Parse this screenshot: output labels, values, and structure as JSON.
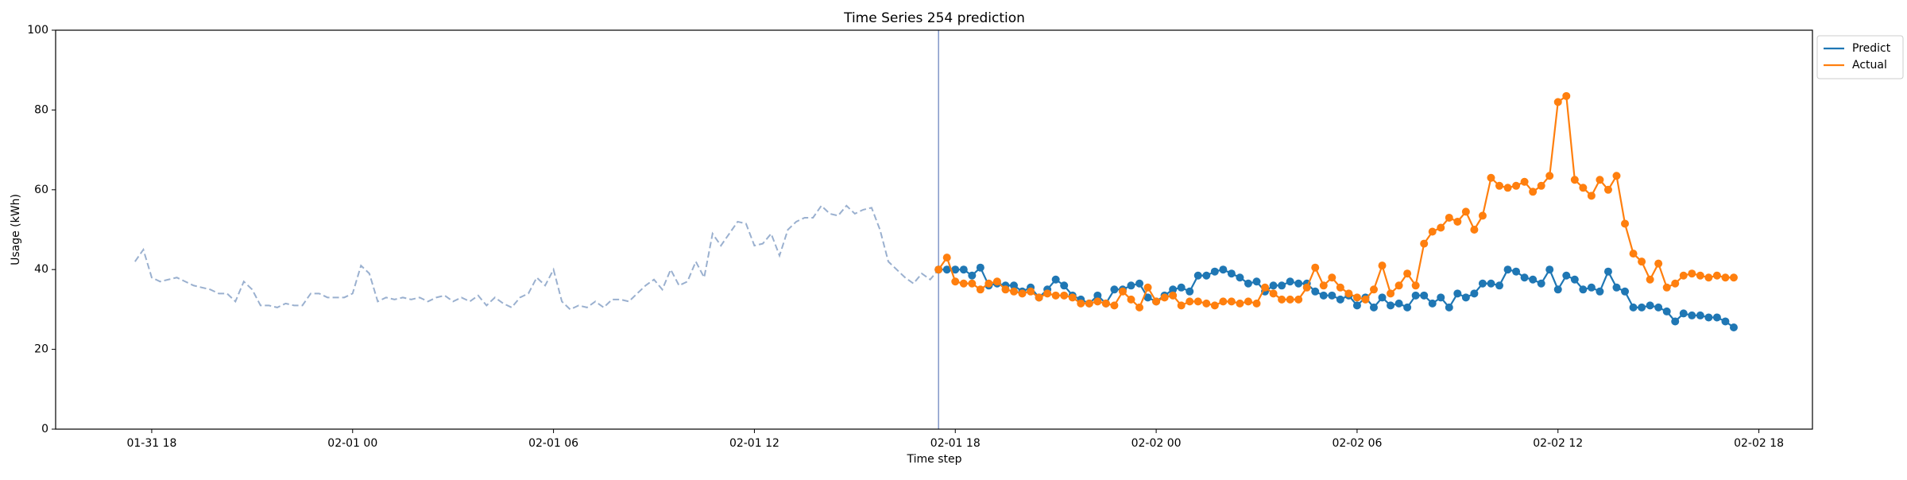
{
  "chart_data": {
    "type": "line",
    "title": "Time Series 254 prediction",
    "x_label": "Time step",
    "y_label": "Usage (kWh)",
    "xlim": [
      15.13,
      67.6
    ],
    "ylim": [
      0,
      100
    ],
    "xticks": [
      {
        "value": 18,
        "label": "01-31 18"
      },
      {
        "value": 24,
        "label": "02-01 00"
      },
      {
        "value": 30,
        "label": "02-01 06"
      },
      {
        "value": 36,
        "label": "02-01 12"
      },
      {
        "value": 42,
        "label": "02-01 18"
      },
      {
        "value": 48,
        "label": "02-02 00"
      },
      {
        "value": 54,
        "label": "02-02 06"
      },
      {
        "value": 60,
        "label": "02-02 12"
      },
      {
        "value": 66,
        "label": "02-02 18"
      }
    ],
    "yticks": [
      0,
      20,
      40,
      60,
      80,
      100
    ],
    "legend": "upper right",
    "grid": false,
    "history": {
      "color": "#9ab0cf",
      "style": "dashed",
      "x": [
        17.5,
        17.75,
        18,
        18.25,
        18.5,
        18.75,
        19,
        19.25,
        19.5,
        19.75,
        20,
        20.25,
        20.5,
        20.75,
        21,
        21.25,
        21.5,
        21.75,
        22,
        22.25,
        22.5,
        22.75,
        23,
        23.25,
        23.5,
        23.75,
        24,
        24.25,
        24.5,
        24.75,
        25,
        25.25,
        25.5,
        25.75,
        26,
        26.25,
        26.5,
        26.75,
        27,
        27.25,
        27.5,
        27.75,
        28,
        28.25,
        28.5,
        28.75,
        29,
        29.25,
        29.5,
        29.75,
        30,
        30.25,
        30.5,
        30.75,
        31,
        31.25,
        31.5,
        31.75,
        32,
        32.25,
        32.5,
        32.75,
        33,
        33.25,
        33.5,
        33.75,
        34,
        34.25,
        34.5,
        34.75,
        35,
        35.25,
        35.5,
        35.75,
        36,
        36.25,
        36.5,
        36.75,
        37,
        37.25,
        37.5,
        37.75,
        38,
        38.25,
        38.5,
        38.75,
        39,
        39.25,
        39.5,
        39.75,
        40,
        40.25,
        40.5,
        40.75,
        41,
        41.25,
        41.5
      ],
      "values": [
        42,
        45,
        38,
        37,
        37.5,
        38,
        37,
        36,
        35.5,
        35,
        34,
        34,
        32,
        37,
        35,
        31,
        31,
        30.5,
        31.5,
        31,
        31,
        34,
        34,
        33,
        33,
        33,
        34,
        41,
        39,
        32,
        33,
        32.5,
        33,
        32.5,
        33,
        32,
        33,
        33.5,
        32,
        33,
        32,
        33.5,
        31,
        33,
        31.5,
        30.5,
        33,
        34,
        38,
        36,
        40,
        32,
        30,
        31,
        30.5,
        32,
        30.5,
        32.5,
        32.5,
        32,
        34,
        36,
        37.5,
        35,
        40,
        36,
        37,
        42,
        38,
        49,
        46,
        49,
        52,
        51.5,
        46,
        46.5,
        49,
        43.5,
        50,
        52,
        53,
        53,
        56,
        54,
        53.5,
        56,
        54,
        55,
        55.5,
        50,
        42,
        40,
        38,
        36.5,
        39,
        37.5,
        40
      ]
    },
    "x": [
      41.5,
      41.75,
      42,
      42.25,
      42.5,
      42.75,
      43,
      43.25,
      43.5,
      43.75,
      44,
      44.25,
      44.5,
      44.75,
      45,
      45.25,
      45.5,
      45.75,
      46,
      46.25,
      46.5,
      46.75,
      47,
      47.25,
      47.5,
      47.75,
      48,
      48.25,
      48.5,
      48.75,
      49,
      49.25,
      49.5,
      49.75,
      50,
      50.25,
      50.5,
      50.75,
      51,
      51.25,
      51.5,
      51.75,
      52,
      52.25,
      52.5,
      52.75,
      53,
      53.25,
      53.5,
      53.75,
      54,
      54.25,
      54.5,
      54.75,
      55,
      55.25,
      55.5,
      55.75,
      56,
      56.25,
      56.5,
      56.75,
      57,
      57.25,
      57.5,
      57.75,
      58,
      58.25,
      58.5,
      58.75,
      59,
      59.25,
      59.5,
      59.75,
      60,
      60.25,
      60.5,
      60.75,
      61,
      61.25,
      61.5,
      61.75,
      62,
      62.25,
      62.5,
      62.75,
      63,
      63.25,
      63.5,
      63.75,
      64,
      64.25,
      64.5,
      64.75,
      65,
      65.25
    ],
    "series": [
      {
        "name": "Predict",
        "color": "#1f77b4",
        "markers": true,
        "values": [
          40,
          40,
          40,
          40,
          38.5,
          40.5,
          36,
          36.5,
          36,
          36,
          34.5,
          35.5,
          33,
          35,
          37.5,
          36,
          33.5,
          32.5,
          31.5,
          33.5,
          31.5,
          35,
          35,
          36,
          36.5,
          33,
          32,
          33.5,
          35,
          35.5,
          34.5,
          38.5,
          38.5,
          39.5,
          40,
          39,
          38,
          36.5,
          37,
          34.5,
          36,
          36,
          37,
          36.5,
          36.5,
          34.5,
          33.5,
          33.5,
          32.5,
          33.5,
          31,
          33,
          30.5,
          33,
          31,
          31.5,
          30.5,
          33.5,
          33.5,
          31.5,
          33,
          30.5,
          34,
          33,
          34,
          36.5,
          36.5,
          36,
          40,
          39.5,
          38,
          37.5,
          36.5,
          40,
          35,
          38.5,
          37.5,
          35,
          35.5,
          34.5,
          39.5,
          35.5,
          34.5,
          30.5,
          30.5,
          31,
          30.5,
          29.5,
          27,
          29,
          28.5,
          28.5,
          28,
          28,
          27,
          25.5
        ]
      },
      {
        "name": "Actual",
        "color": "#ff7f0e",
        "markers": true,
        "values": [
          40,
          43,
          37,
          36.5,
          36.5,
          35,
          36.5,
          37,
          35,
          34.5,
          34,
          34.5,
          33,
          34,
          33.5,
          33.5,
          33,
          31.5,
          31.5,
          32,
          31.5,
          31,
          34.5,
          32.5,
          30.5,
          35.5,
          32,
          33,
          33.5,
          31,
          32,
          32,
          31.5,
          31,
          32,
          32,
          31.5,
          32,
          31.5,
          35.5,
          34,
          32.5,
          32.5,
          32.5,
          35.5,
          40.5,
          36,
          38,
          35.5,
          34,
          33,
          32.5,
          35,
          41,
          34,
          36,
          39,
          36,
          46.5,
          49.5,
          50.5,
          53,
          52,
          54.5,
          50,
          53.5,
          63,
          61,
          60.5,
          61,
          62,
          59.5,
          61,
          63.5,
          82,
          83.5,
          62.5,
          60.5,
          58.5,
          62.5,
          60,
          63.5,
          51.5,
          44,
          42,
          37.5,
          41.5,
          35.5,
          36.5,
          38.5,
          39,
          38.5,
          38,
          38.5,
          38,
          38
        ]
      }
    ]
  }
}
